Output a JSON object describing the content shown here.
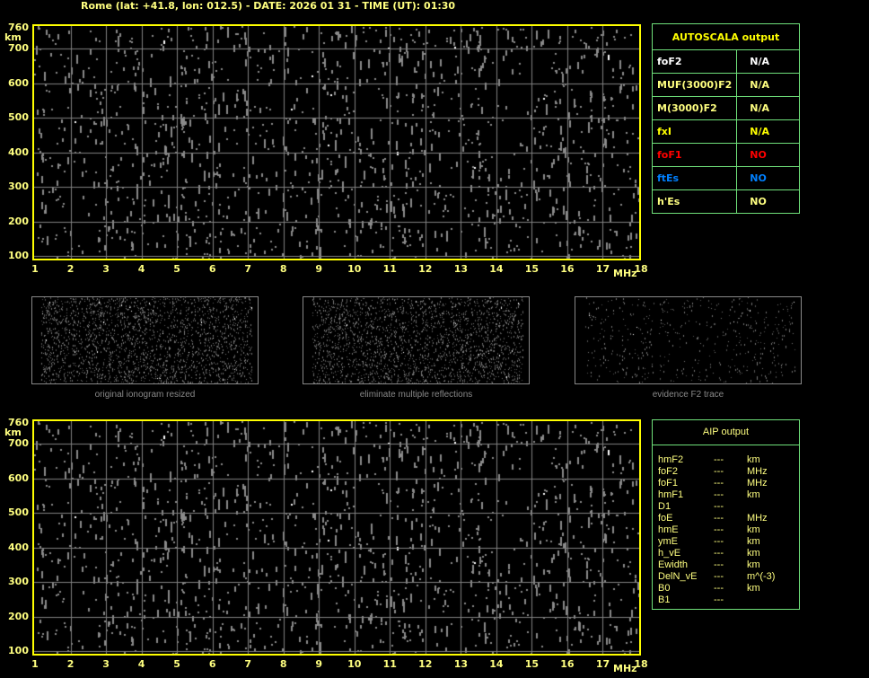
{
  "header": {
    "title": "Rome (lat: +41.8, lon: 012.5) - DATE: 2026 01 31 - TIME (UT): 01:30"
  },
  "ionogram": {
    "y_ticks": [
      "760",
      "700",
      "600",
      "500",
      "400",
      "300",
      "200",
      "100"
    ],
    "y_unit": "km",
    "x_ticks": [
      "1",
      "2",
      "3",
      "4",
      "5",
      "6",
      "7",
      "8",
      "9",
      "10",
      "11",
      "12",
      "13",
      "14",
      "15",
      "16",
      "17",
      "18"
    ],
    "x_unit": "MHz",
    "x_range": [
      1,
      18
    ],
    "y_range": [
      100,
      760
    ],
    "frame_color": "#ffff00",
    "grid_color": "#808080"
  },
  "thumbnails": [
    {
      "caption": "original ionogram resized"
    },
    {
      "caption": "eliminate multiple reflections"
    },
    {
      "caption": "evidence F2 trace"
    }
  ],
  "autoscala": {
    "title": "AUTOSCALA output",
    "rows": [
      {
        "param": "foF2",
        "value": "N/A",
        "param_color": "#ffffff",
        "value_color": "#ffffff"
      },
      {
        "param": "MUF(3000)F2",
        "value": "N/A",
        "param_color": "#ffff80",
        "value_color": "#ffff80"
      },
      {
        "param": "M(3000)F2",
        "value": "N/A",
        "param_color": "#ffff80",
        "value_color": "#ffff80"
      },
      {
        "param": "fxI",
        "value": "N/A",
        "param_color": "#ffff00",
        "value_color": "#ffff00"
      },
      {
        "param": "foF1",
        "value": "NO",
        "param_color": "#ff0000",
        "value_color": "#ff0000"
      },
      {
        "param": "ftEs",
        "value": "NO",
        "param_color": "#0080ff",
        "value_color": "#0080ff"
      },
      {
        "param": "h'Es",
        "value": "NO",
        "param_color": "#ffff80",
        "value_color": "#ffff80"
      }
    ]
  },
  "aip": {
    "title": "AIP output",
    "rows": [
      {
        "param": "hmF2",
        "value": "---",
        "unit": "km"
      },
      {
        "param": "foF2",
        "value": "---",
        "unit": "MHz"
      },
      {
        "param": "foF1",
        "value": "---",
        "unit": "MHz"
      },
      {
        "param": "hmF1",
        "value": "---",
        "unit": "km"
      },
      {
        "param": "D1",
        "value": "---",
        "unit": ""
      },
      {
        "param": "foE",
        "value": "---",
        "unit": "MHz"
      },
      {
        "param": "hmE",
        "value": "---",
        "unit": "km"
      },
      {
        "param": "ymE",
        "value": "---",
        "unit": "km"
      },
      {
        "param": "h_vE",
        "value": "---",
        "unit": "km"
      },
      {
        "param": "Ewidth",
        "value": "---",
        "unit": "km"
      },
      {
        "param": "DelN_vE",
        "value": "---",
        "unit": "m^(-3)"
      },
      {
        "param": "B0",
        "value": "---",
        "unit": "km"
      },
      {
        "param": "B1",
        "value": "---",
        "unit": ""
      }
    ]
  }
}
